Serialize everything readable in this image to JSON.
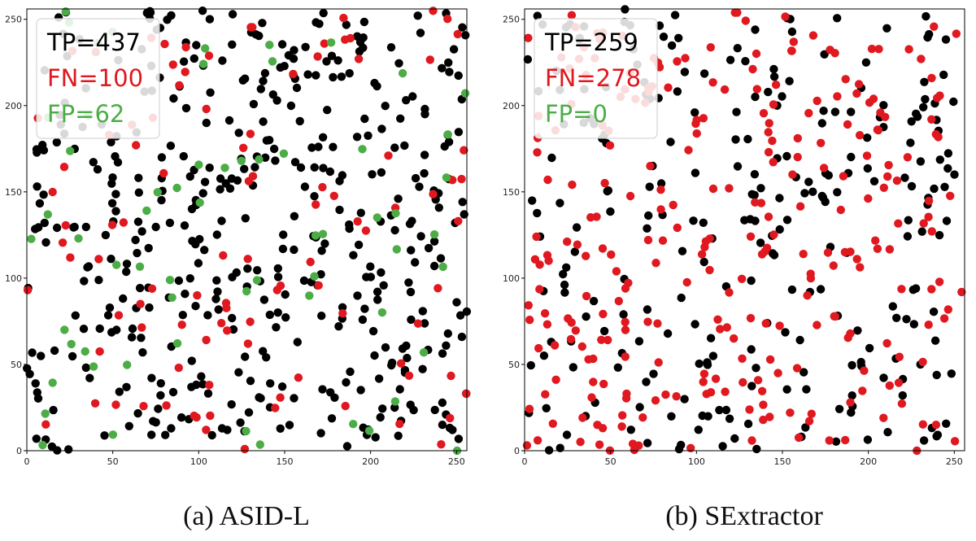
{
  "chart_data": [
    {
      "type": "scatter",
      "caption": "(a) ASID-L",
      "xlim": [
        0,
        256
      ],
      "ylim": [
        0,
        256
      ],
      "xticks": [
        0,
        50,
        100,
        150,
        200,
        250
      ],
      "yticks": [
        0,
        50,
        100,
        150,
        200,
        250
      ],
      "grid": false,
      "legend_position": "top-left",
      "legend": [
        {
          "key": "TP",
          "label": "TP=437",
          "color": "#000000"
        },
        {
          "key": "FN",
          "label": "FN=100",
          "color": "#e0181f"
        },
        {
          "key": "FP",
          "label": "FP=62",
          "color": "#4cad46"
        }
      ],
      "series": {
        "TP": {
          "name": "TP",
          "color": "#000000",
          "count": 437
        },
        "FN": {
          "name": "FN",
          "color": "#e0181f",
          "count": 100
        },
        "FP": {
          "name": "FP",
          "color": "#4cad46",
          "count": 62
        }
      },
      "points_note": "sampled positions; counts as shown in legend",
      "seed": 11
    },
    {
      "type": "scatter",
      "caption": "(b) SExtractor",
      "xlim": [
        0,
        256
      ],
      "ylim": [
        0,
        256
      ],
      "xticks": [
        0,
        50,
        100,
        150,
        200,
        250
      ],
      "yticks": [
        0,
        50,
        100,
        150,
        200,
        250
      ],
      "grid": false,
      "legend_position": "top-left",
      "legend": [
        {
          "key": "TP",
          "label": "TP=259",
          "color": "#000000"
        },
        {
          "key": "FN",
          "label": "FN=278",
          "color": "#e0181f"
        },
        {
          "key": "FP",
          "label": "FP=0",
          "color": "#4cad46"
        }
      ],
      "series": {
        "TP": {
          "name": "TP",
          "color": "#000000",
          "count": 259
        },
        "FN": {
          "name": "FN",
          "color": "#e0181f",
          "count": 278
        },
        "FP": {
          "name": "FP",
          "color": "#4cad46",
          "count": 0
        }
      },
      "points_note": "sampled positions; counts as shown in legend",
      "seed": 29
    }
  ]
}
